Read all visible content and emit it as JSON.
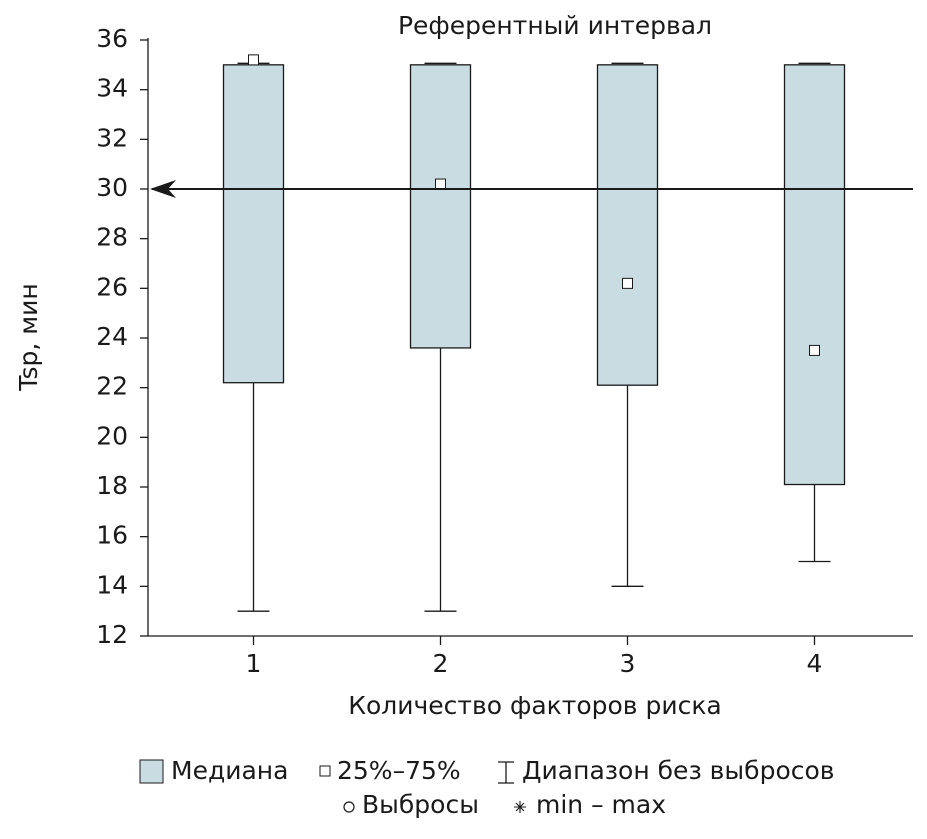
{
  "chart_data": {
    "type": "box",
    "title": "Референтный интервал",
    "x_label": "Количество факторов риска",
    "y_label": "Tsp, мин",
    "categories": [
      "1",
      "2",
      "3",
      "4"
    ],
    "q1": [
      22.2,
      23.6,
      22.1,
      18.1
    ],
    "q3": [
      35,
      35,
      35,
      35
    ],
    "whisker_low": [
      13,
      13,
      14,
      15
    ],
    "whisker_high": [
      35,
      35,
      35,
      35
    ],
    "marker": [
      35.2,
      30.2,
      26.2,
      23.5
    ],
    "reference_line": 30,
    "box_color": "#c9dce2",
    "ylim": [
      12,
      36
    ],
    "yticks": [
      12,
      14,
      16,
      18,
      20,
      22,
      24,
      26,
      28,
      30,
      32,
      34,
      36
    ],
    "legend": [
      "Медиана",
      "25%–75%",
      "Диапазон без выбросов",
      "Выбросы",
      "min – max"
    ]
  }
}
